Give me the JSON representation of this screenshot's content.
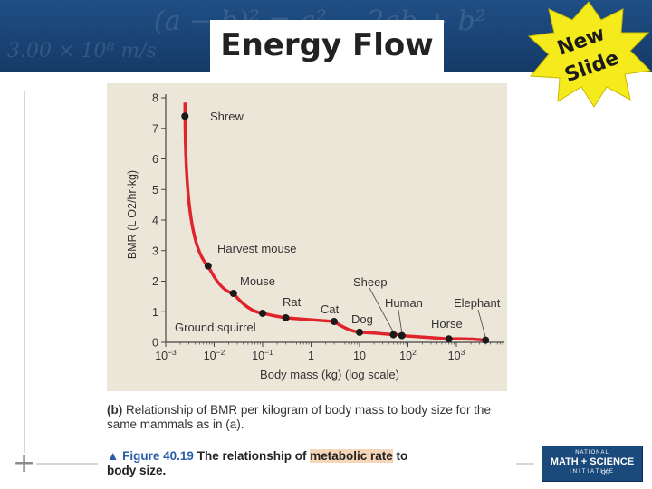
{
  "slide": {
    "title": "Energy Flow",
    "badge_line1": "New",
    "badge_line2": "Slide",
    "background_formula": "(a − b)² = a² − 2ab + b²",
    "background_formula2": "3.00 × 10⁸ m/s"
  },
  "caption": {
    "label": "(b)",
    "text": "Relationship of BMR per kilogram of body mass to body size for the same mammals as in (a)."
  },
  "figure_caption": {
    "arrow": "▲",
    "number": "Figure 40.19",
    "text_before": "The relationship of",
    "highlight": "metabolic rate",
    "text_after": "to",
    "line2": "body size."
  },
  "logo": {
    "line1": "NATIONAL",
    "line2": "MATH + SCIENCE",
    "line3": "INITIATIVE",
    "page_number": "95"
  },
  "colors": {
    "banner": "#1f4f86",
    "curve": "#e0242b",
    "plot_bg": "#ece6d8",
    "highlight": "#f6d6b8",
    "figure_number": "#2a5ea8"
  },
  "chart_data": {
    "type": "scatter",
    "xlabel": "Body mass (kg) (log scale)",
    "ylabel": "BMR (L O2/hr·kg)",
    "x_scale": "log",
    "xlim": [
      0.001,
      10000
    ],
    "ylim": [
      0,
      8
    ],
    "x_ticks": [
      {
        "value": 0.001,
        "base": "10",
        "exp": "−3"
      },
      {
        "value": 0.01,
        "base": "10",
        "exp": "−2"
      },
      {
        "value": 0.1,
        "base": "10",
        "exp": "−1"
      },
      {
        "value": 1,
        "base": "1",
        "exp": ""
      },
      {
        "value": 10,
        "base": "10",
        "exp": ""
      },
      {
        "value": 100,
        "base": "10",
        "exp": "2"
      },
      {
        "value": 1000,
        "base": "10",
        "exp": "3"
      }
    ],
    "y_ticks": [
      "0",
      "1",
      "2",
      "3",
      "4",
      "5",
      "6",
      "7",
      "8"
    ],
    "points": [
      {
        "name": "Shrew",
        "x": 0.0025,
        "y": 7.4
      },
      {
        "name": "Harvest mouse",
        "x": 0.0075,
        "y": 2.5
      },
      {
        "name": "Mouse",
        "x": 0.025,
        "y": 1.6
      },
      {
        "name": "Ground squirrel",
        "x": 0.1,
        "y": 0.95
      },
      {
        "name": "Rat",
        "x": 0.3,
        "y": 0.8
      },
      {
        "name": "Cat",
        "x": 3.0,
        "y": 0.68
      },
      {
        "name": "Dog",
        "x": 10.0,
        "y": 0.33
      },
      {
        "name": "Sheep",
        "x": 50.0,
        "y": 0.25
      },
      {
        "name": "Human",
        "x": 75.0,
        "y": 0.22
      },
      {
        "name": "Horse",
        "x": 700.0,
        "y": 0.11
      },
      {
        "name": "Elephant",
        "x": 4000.0,
        "y": 0.07
      }
    ],
    "curve": "smooth decreasing trend line through points",
    "grid": false,
    "legend": "none"
  }
}
